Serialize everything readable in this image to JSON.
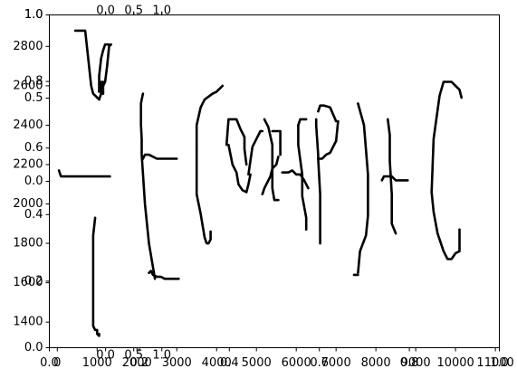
{
  "chart_data": [
    {
      "type": "line",
      "role": "primary axes",
      "x_ticks": [
        0,
        1000,
        2000,
        3000,
        4000,
        5000,
        6000,
        7000,
        8000,
        9000,
        10000,
        11000
      ],
      "x_tick_labels": [
        "0",
        "1000",
        "2000",
        "3000",
        "4000",
        "5000",
        "6000",
        "7000",
        "8000",
        "9000",
        "10000",
        "11000"
      ],
      "xlim": [
        -200,
        11100
      ],
      "y_ticks": [
        1400,
        1600,
        1800,
        2000,
        2200,
        2400,
        2600,
        2800
      ],
      "y_tick_labels": [
        "1400",
        "1600",
        "1800",
        "2000",
        "2200",
        "2400",
        "2600",
        "2800"
      ],
      "ylim": [
        1270,
        2960
      ],
      "grid": false,
      "xlabel": "",
      "ylabel": "",
      "title": "",
      "series": [
        {
          "x": [
            450,
            500,
            700,
            850,
            900,
            1050,
            1100,
            1150,
            1150,
            1100,
            1050,
            1050,
            1100,
            1150,
            1200,
            1300
          ],
          "y": [
            2880,
            2880,
            2880,
            2600,
            2560,
            2530,
            2560,
            2620,
            2560,
            2620,
            2570,
            2650,
            2740,
            2780,
            2810,
            2810
          ]
        },
        {
          "x": [
            1050,
            1100,
            1150,
            1200,
            1250,
            1300,
            1350
          ],
          "y": [
            2570,
            2590,
            2600,
            2620,
            2700,
            2800,
            2810
          ]
        },
        {
          "x": [
            40,
            90,
            500,
            900,
            1200,
            1320
          ],
          "y": [
            2170,
            2140,
            2140,
            2140,
            2140,
            2140
          ]
        },
        {
          "x": [
            950,
            900,
            900,
            900,
            900,
            900,
            950,
            1000,
            1000,
            1050,
            1050
          ],
          "y": [
            1930,
            1840,
            1700,
            1560,
            1410,
            1380,
            1360,
            1360,
            1340,
            1330,
            1340
          ]
        },
        {
          "x": [
            2150,
            2120,
            2100,
            2100,
            2120,
            2120,
            2200,
            2300,
            2400,
            2450
          ],
          "y": [
            2560,
            2530,
            2510,
            2400,
            2330,
            2250,
            2000,
            1800,
            1680,
            1620
          ]
        },
        {
          "x": [
            2150,
            2200,
            2300,
            2500,
            2700,
            3000
          ],
          "y": [
            2230,
            2250,
            2250,
            2230,
            2230,
            2230
          ]
        },
        {
          "x": [
            2300,
            2350,
            2400,
            2500,
            2600,
            2700,
            2800,
            3050
          ],
          "y": [
            1650,
            1660,
            1640,
            1630,
            1630,
            1620,
            1620,
            1620
          ]
        },
        {
          "x": [
            3500,
            3500,
            3600,
            3700,
            3900,
            4000,
            4100,
            4150
          ],
          "y": [
            2280,
            2400,
            2490,
            2530,
            2560,
            2570,
            2590,
            2600
          ]
        },
        {
          "x": [
            3500,
            3500,
            3600,
            3700,
            3750,
            3800,
            3850,
            3850
          ],
          "y": [
            2280,
            2050,
            1950,
            1830,
            1800,
            1800,
            1820,
            1860
          ]
        },
        {
          "x": [
            4250,
            4300,
            4500,
            4600,
            4700,
            4700,
            4750
          ],
          "y": [
            2300,
            2430,
            2430,
            2380,
            2340,
            2280,
            2200
          ]
        },
        {
          "x": [
            4300,
            4400,
            4500,
            4550,
            4650,
            4750,
            4800,
            4850
          ],
          "y": [
            2300,
            2200,
            2160,
            2100,
            2070,
            2060,
            2100,
            2150
          ]
        },
        {
          "x": [
            4800,
            4850,
            4900,
            5000,
            5100,
            5150
          ],
          "y": [
            2150,
            2220,
            2290,
            2330,
            2370,
            2370
          ]
        },
        {
          "x": [
            5200,
            5300,
            5400,
            5400,
            5400,
            5450,
            5550
          ],
          "y": [
            2430,
            2390,
            2300,
            2150,
            2080,
            2020,
            2020
          ]
        },
        {
          "x": [
            5400,
            5450,
            5500,
            5600,
            5600
          ],
          "y": [
            2370,
            2370,
            2370,
            2370,
            2250
          ]
        },
        {
          "x": [
            5150,
            5200,
            5250,
            5350,
            5400,
            5500,
            5550
          ],
          "y": [
            2050,
            2080,
            2100,
            2140,
            2180,
            2200,
            2240
          ]
        },
        {
          "x": [
            5650,
            5700,
            5800,
            5900,
            6000,
            6100,
            6200,
            6300
          ],
          "y": [
            2160,
            2160,
            2160,
            2170,
            2150,
            2150,
            2120,
            2080
          ]
        },
        {
          "x": [
            6050,
            6050,
            6150,
            6150,
            6250,
            6250
          ],
          "y": [
            2400,
            2300,
            2150,
            2040,
            1930,
            1870
          ]
        },
        {
          "x": [
            6050,
            6100,
            6200,
            6250
          ],
          "y": [
            2400,
            2430,
            2430,
            2430
          ]
        },
        {
          "x": [
            6500,
            6500,
            6550,
            6550,
            6650,
            6750,
            6850,
            7000,
            7050
          ],
          "y": [
            2430,
            2400,
            2250,
            2230,
            2230,
            2250,
            2260,
            2320,
            2420
          ]
        },
        {
          "x": [
            6550,
            6600,
            6700,
            6850,
            7000
          ],
          "y": [
            2470,
            2500,
            2500,
            2490,
            2420
          ]
        },
        {
          "x": [
            6550,
            6600,
            6600
          ],
          "y": [
            2230,
            2050,
            1800
          ]
        },
        {
          "x": [
            7550,
            7700,
            7800,
            7800,
            7750,
            7600,
            7550
          ],
          "y": [
            2510,
            2400,
            2150,
            1940,
            1840,
            1760,
            1650
          ]
        },
        {
          "x": [
            7450,
            7550
          ],
          "y": [
            1640,
            1640
          ]
        },
        {
          "x": [
            8150,
            8200,
            8400,
            8400,
            8500,
            8500,
            8600,
            8800
          ],
          "y": [
            2120,
            2140,
            2140,
            2140,
            2120,
            2120,
            2120,
            2120
          ]
        },
        {
          "x": [
            8300,
            8350,
            8350,
            8400,
            8400,
            8500
          ],
          "y": [
            2430,
            2350,
            2220,
            2050,
            1900,
            1850
          ]
        },
        {
          "x": [
            9400,
            9450,
            9600,
            9700,
            9900,
            10000,
            10100,
            10150
          ],
          "y": [
            2060,
            2330,
            2550,
            2620,
            2620,
            2600,
            2580,
            2540
          ]
        },
        {
          "x": [
            9400,
            9450,
            9550,
            9700,
            9800,
            9900,
            10000,
            10100,
            10100
          ],
          "y": [
            2060,
            1960,
            1850,
            1760,
            1720,
            1720,
            1750,
            1760,
            1870
          ]
        }
      ]
    },
    {
      "type": "empty axes",
      "ticks": [
        0.0,
        0.2,
        0.4,
        0.6,
        0.8,
        1.0
      ],
      "tick_labels": [
        "0.0",
        "0.2",
        "0.4",
        "0.6",
        "0.8",
        "1.0"
      ]
    },
    {
      "type": "empty axes",
      "ticks": [
        0.0,
        0.5,
        1.0
      ],
      "tick_labels": [
        "0.0",
        "0.5",
        "1.0"
      ]
    }
  ]
}
